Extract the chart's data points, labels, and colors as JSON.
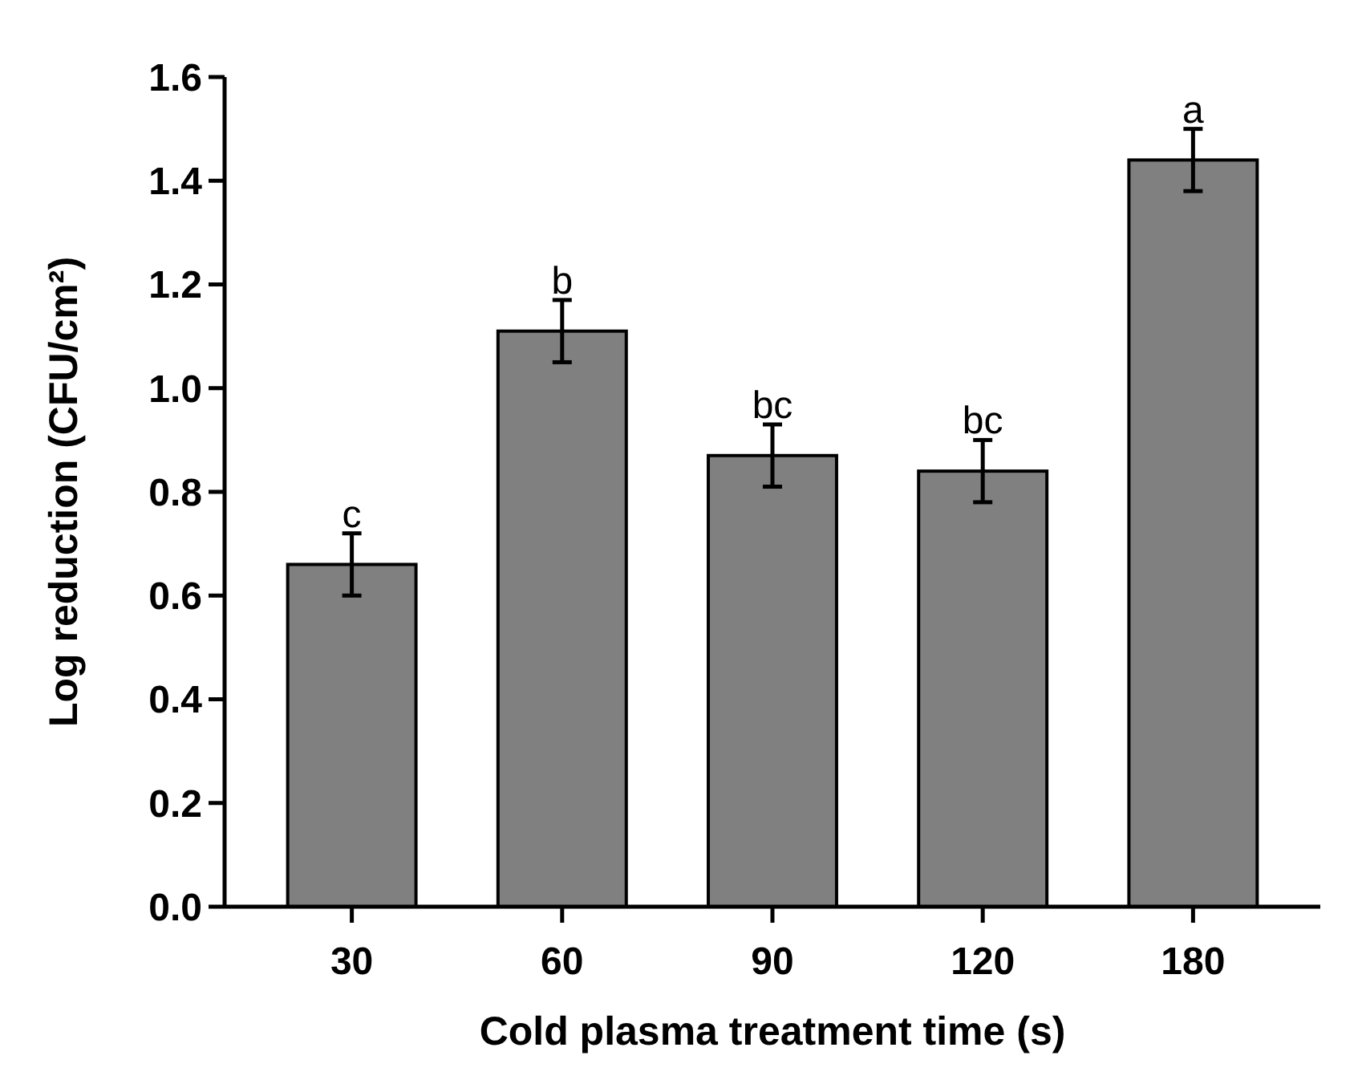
{
  "chart_data": {
    "type": "bar",
    "xlabel": "Cold plasma treatment time (s)",
    "ylabel": "Log reduction (CFU/cm²)",
    "categories": [
      "30",
      "60",
      "90",
      "120",
      "180"
    ],
    "values": [
      0.66,
      1.11,
      0.87,
      0.84,
      1.44
    ],
    "errors": [
      0.06,
      0.06,
      0.06,
      0.06,
      0.06
    ],
    "color": "#808080",
    "ylim": [
      0,
      1.6
    ],
    "yticks": [
      {
        "value": 0,
        "label": "0.0"
      },
      {
        "value": 0.2,
        "label": "0.2"
      },
      {
        "value": 0.4,
        "label": "0.4"
      },
      {
        "value": 0.6,
        "label": "0.6"
      },
      {
        "value": 0.8,
        "label": "0.8"
      },
      {
        "value": 1.0,
        "label": "1.0"
      },
      {
        "value": 1.2,
        "label": "1.2"
      },
      {
        "value": 1.4,
        "label": "1.4"
      },
      {
        "value": 1.6,
        "label": "1.6"
      }
    ],
    "grid": false,
    "annotations": [
      {
        "text": "c",
        "x": "30",
        "y": 0.72
      },
      {
        "text": "b",
        "x": "60",
        "y": 1.17
      },
      {
        "text": "bc",
        "x": "90",
        "y": 0.93
      },
      {
        "text": "bc",
        "x": "120",
        "y": 0.9
      },
      {
        "text": "a",
        "x": "180",
        "y": 1.5
      }
    ]
  }
}
